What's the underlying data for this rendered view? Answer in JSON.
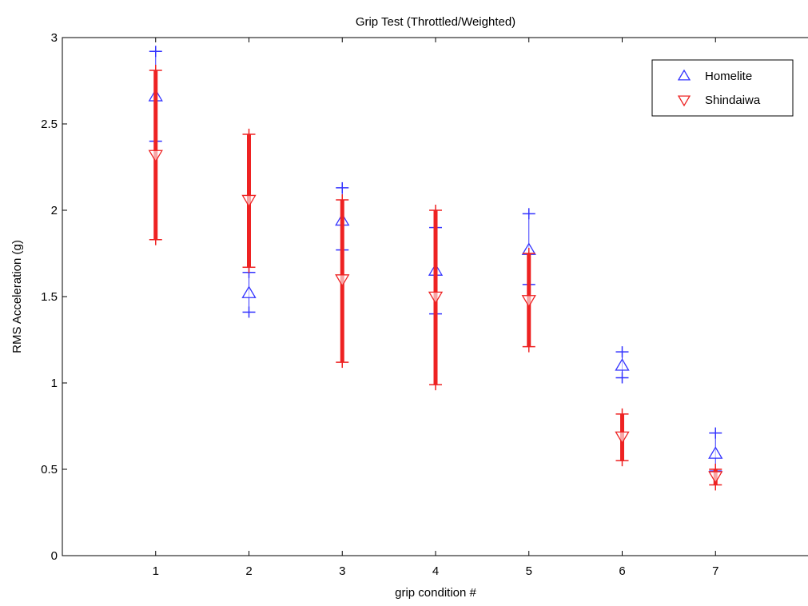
{
  "chart_data": {
    "type": "scatter",
    "title": "Grip Test (Throttled/Weighted)",
    "xlabel": "grip condition #",
    "ylabel": "RMS Acceleration (g)",
    "xlim": [
      0,
      8
    ],
    "ylim": [
      0,
      3
    ],
    "x_ticks": [
      1,
      2,
      3,
      4,
      5,
      6,
      7
    ],
    "y_ticks": [
      0,
      0.5,
      1,
      1.5,
      2,
      2.5,
      3
    ],
    "grid": false,
    "legend_position": "top-right",
    "series": [
      {
        "name": "Homelite",
        "marker": "triangle-up",
        "color": "#3333ff",
        "x": [
          1,
          2,
          3,
          4,
          5,
          6,
          7
        ],
        "values": [
          2.66,
          1.52,
          1.94,
          1.65,
          1.77,
          1.1,
          0.59
        ],
        "lower": [
          2.4,
          1.41,
          1.77,
          1.4,
          1.57,
          1.03,
          0.49
        ],
        "upper": [
          2.92,
          1.64,
          2.13,
          1.9,
          1.98,
          1.18,
          0.71
        ]
      },
      {
        "name": "Shindaiwa",
        "marker": "triangle-down",
        "color": "#ee2222",
        "x": [
          1,
          2,
          3,
          4,
          5,
          6,
          7
        ],
        "values": [
          2.32,
          2.06,
          1.6,
          1.5,
          1.48,
          0.69,
          0.46
        ],
        "lower": [
          1.83,
          1.67,
          1.12,
          0.99,
          1.21,
          0.55,
          0.41
        ],
        "upper": [
          2.81,
          2.44,
          2.06,
          2.0,
          1.75,
          0.82,
          0.5
        ]
      }
    ]
  }
}
